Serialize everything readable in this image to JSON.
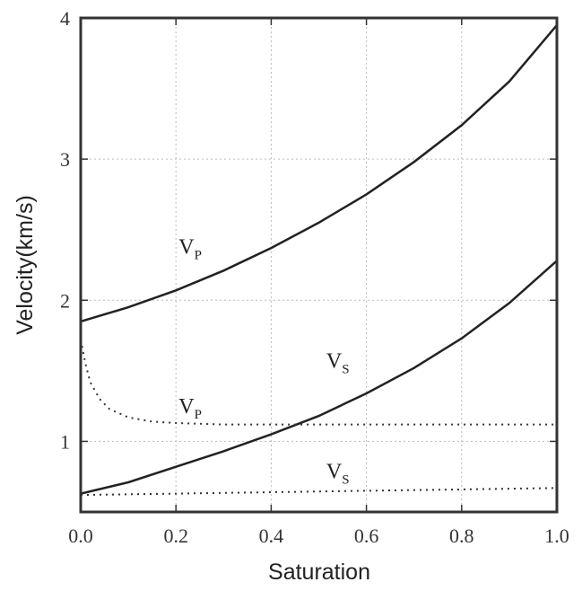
{
  "chart_data": {
    "type": "line",
    "title": "",
    "xlabel": "Saturation",
    "ylabel": "Velocity(km/s)",
    "xlim": [
      0,
      1
    ],
    "ylim": [
      0.5,
      4
    ],
    "x_ticks": [
      "0.0",
      "0.2",
      "0.4",
      "0.6",
      "0.8",
      "1.0"
    ],
    "y_ticks": [
      "1",
      "2",
      "3",
      "4"
    ],
    "grid": true,
    "series": [
      {
        "label": "V",
        "subscript": "P",
        "style": "solid",
        "x": [
          0.0,
          0.1,
          0.2,
          0.3,
          0.4,
          0.5,
          0.6,
          0.7,
          0.8,
          0.9,
          1.0
        ],
        "y": [
          1.85,
          1.95,
          2.07,
          2.21,
          2.37,
          2.55,
          2.75,
          2.98,
          3.24,
          3.55,
          3.95
        ]
      },
      {
        "label": "V",
        "subscript": "S",
        "style": "solid",
        "x": [
          0.0,
          0.1,
          0.2,
          0.3,
          0.4,
          0.5,
          0.6,
          0.7,
          0.8,
          0.9,
          1.0
        ],
        "y": [
          0.63,
          0.71,
          0.82,
          0.93,
          1.05,
          1.18,
          1.34,
          1.52,
          1.73,
          1.98,
          2.28
        ]
      },
      {
        "label": "V",
        "subscript": "P",
        "style": "dotted",
        "x": [
          0.0,
          0.01,
          0.02,
          0.04,
          0.06,
          0.1,
          0.15,
          0.2,
          0.3,
          0.4,
          0.5,
          0.6,
          0.8,
          1.0
        ],
        "y": [
          1.72,
          1.55,
          1.42,
          1.3,
          1.23,
          1.17,
          1.14,
          1.13,
          1.12,
          1.12,
          1.12,
          1.12,
          1.12,
          1.12
        ]
      },
      {
        "label": "V",
        "subscript": "S",
        "style": "dotted",
        "x": [
          0.0,
          0.2,
          0.4,
          0.6,
          0.8,
          1.0
        ],
        "y": [
          0.62,
          0.63,
          0.64,
          0.65,
          0.66,
          0.67
        ]
      }
    ]
  }
}
